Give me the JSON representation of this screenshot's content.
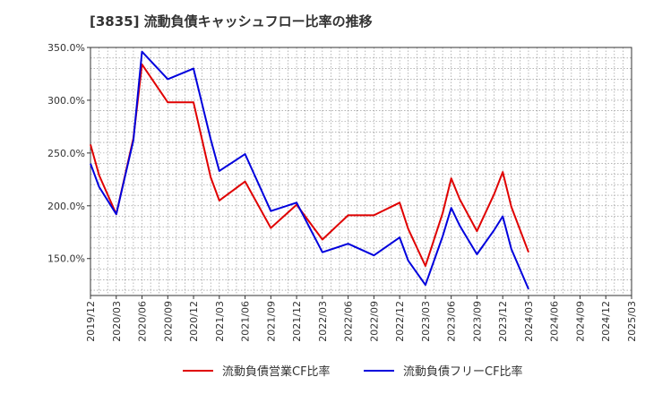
{
  "chart_data": {
    "type": "line",
    "title": "[3835]  流動負債キャッシュフロー比率の推移",
    "x_ticks": [
      "2019/12",
      "2020/03",
      "2020/06",
      "2020/09",
      "2020/12",
      "2021/03",
      "2021/06",
      "2021/09",
      "2021/12",
      "2022/03",
      "2022/06",
      "2022/09",
      "2022/12",
      "2023/03",
      "2023/06",
      "2023/09",
      "2023/12",
      "2024/03",
      "2024/06",
      "2024/09",
      "2024/12",
      "2025/03"
    ],
    "y_ticks": [
      "150.0%",
      "200.0%",
      "250.0%",
      "300.0%",
      "350.0%"
    ],
    "ylim": [
      115,
      350
    ],
    "grid": true,
    "legend_position": "bottom",
    "series": [
      {
        "name": "流動負債営業CF比率",
        "color": "#e00000",
        "points": [
          [
            "2019/12",
            258
          ],
          [
            "2020/01",
            229
          ],
          [
            "2020/03",
            192
          ],
          [
            "2020/05",
            264
          ],
          [
            "2020/06",
            334
          ],
          [
            "2020/09",
            298
          ],
          [
            "2020/12",
            298
          ],
          [
            "2021/02",
            227
          ],
          [
            "2021/03",
            205
          ],
          [
            "2021/06",
            223
          ],
          [
            "2021/09",
            179
          ],
          [
            "2021/12",
            201
          ],
          [
            "2022/03",
            168
          ],
          [
            "2022/06",
            191
          ],
          [
            "2022/09",
            191
          ],
          [
            "2022/12",
            203
          ],
          [
            "2023/01",
            178
          ],
          [
            "2023/03",
            143
          ],
          [
            "2023/05",
            193
          ],
          [
            "2023/06",
            226
          ],
          [
            "2023/07",
            206
          ],
          [
            "2023/09",
            176
          ],
          [
            "2023/11",
            211
          ],
          [
            "2023/12",
            232
          ],
          [
            "2024/01",
            199
          ],
          [
            "2024/03",
            156
          ]
        ]
      },
      {
        "name": "流動負債フリーCF比率",
        "color": "#0000dd",
        "points": [
          [
            "2019/12",
            240
          ],
          [
            "2020/01",
            218
          ],
          [
            "2020/03",
            192
          ],
          [
            "2020/05",
            262
          ],
          [
            "2020/06",
            346
          ],
          [
            "2020/09",
            320
          ],
          [
            "2020/12",
            330
          ],
          [
            "2021/02",
            263
          ],
          [
            "2021/03",
            233
          ],
          [
            "2021/06",
            249
          ],
          [
            "2021/09",
            195
          ],
          [
            "2021/12",
            203
          ],
          [
            "2022/03",
            156
          ],
          [
            "2022/06",
            164
          ],
          [
            "2022/09",
            153
          ],
          [
            "2022/12",
            170
          ],
          [
            "2023/01",
            148
          ],
          [
            "2023/03",
            125
          ],
          [
            "2023/05",
            171
          ],
          [
            "2023/06",
            198
          ],
          [
            "2023/07",
            181
          ],
          [
            "2023/09",
            154
          ],
          [
            "2023/11",
            177
          ],
          [
            "2023/12",
            190
          ],
          [
            "2024/01",
            159
          ],
          [
            "2024/03",
            121
          ]
        ]
      }
    ]
  }
}
